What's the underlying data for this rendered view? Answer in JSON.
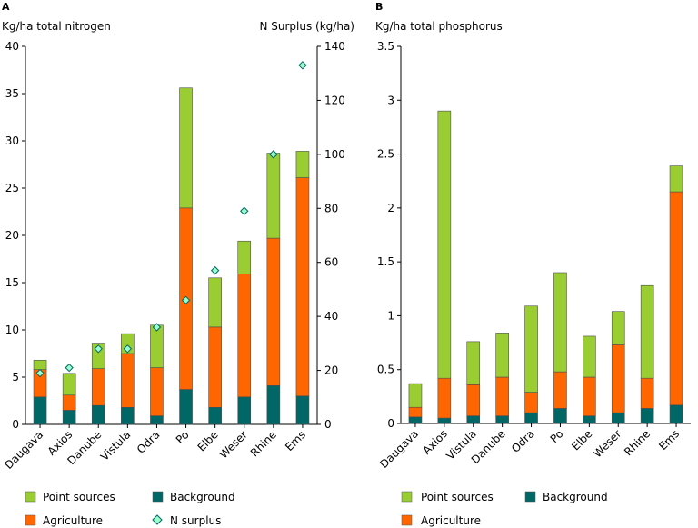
{
  "colors": {
    "point_sources": "#9ACD32",
    "agriculture": "#FF6600",
    "background": "#006666",
    "n_surplus_fill": "#99FFCC",
    "n_surplus_stroke": "#006666"
  },
  "legend": {
    "point_sources": "Point sources",
    "background": "Background",
    "agriculture": "Agriculture",
    "n_surplus": "N surplus"
  },
  "chart_data": [
    {
      "panel_letter": "A",
      "type": "bar",
      "stacked": true,
      "ylabel": "Kg/ha total nitrogen",
      "y2label": "N Surplus (kg/ha)",
      "ylim": [
        0,
        40
      ],
      "yticks": [
        "0",
        "5",
        "10",
        "15",
        "20",
        "25",
        "30",
        "35",
        "40"
      ],
      "y2lim": [
        0,
        140
      ],
      "y2ticks": [
        "0",
        "20",
        "40",
        "60",
        "80",
        "100",
        "120",
        "140"
      ],
      "categories": [
        "Daugava",
        "Axios",
        "Danube",
        "Vistula",
        "Odra",
        "Po",
        "Elbe",
        "Weser",
        "Rhine",
        "Ems"
      ],
      "series": [
        {
          "name": "Background",
          "values": [
            2.9,
            1.5,
            2.0,
            1.8,
            0.9,
            3.7,
            1.8,
            2.9,
            4.1,
            3.0
          ]
        },
        {
          "name": "Agriculture",
          "values": [
            2.9,
            1.6,
            3.9,
            5.7,
            5.1,
            19.2,
            8.5,
            13.0,
            15.6,
            23.1
          ]
        },
        {
          "name": "Point sources",
          "values": [
            1.0,
            2.3,
            2.7,
            2.1,
            4.5,
            12.7,
            5.2,
            3.5,
            9.0,
            2.8
          ]
        }
      ],
      "n_surplus": [
        19,
        21,
        28,
        28,
        36,
        46,
        57,
        79,
        100,
        133
      ],
      "grid": false,
      "legend_position": "bottom"
    },
    {
      "panel_letter": "B",
      "type": "bar",
      "stacked": true,
      "ylabel": "Kg/ha total phosphorus",
      "ylim": [
        0,
        3.5
      ],
      "yticks": [
        "0",
        "0.5",
        "1",
        "1.5",
        "2",
        "2.5",
        "3",
        "3.5"
      ],
      "categories": [
        "Daugava",
        "Axios",
        "Vistula",
        "Danube",
        "Odra",
        "Po",
        "Elbe",
        "Weser",
        "Rhine",
        "Ems"
      ],
      "series": [
        {
          "name": "Background",
          "values": [
            0.06,
            0.05,
            0.07,
            0.07,
            0.1,
            0.14,
            0.07,
            0.1,
            0.14,
            0.17
          ]
        },
        {
          "name": "Agriculture",
          "values": [
            0.09,
            0.37,
            0.29,
            0.36,
            0.19,
            0.34,
            0.36,
            0.63,
            0.28,
            1.98
          ]
        },
        {
          "name": "Point sources",
          "values": [
            0.22,
            2.48,
            0.4,
            0.41,
            0.8,
            0.92,
            0.38,
            0.31,
            0.86,
            0.24
          ]
        }
      ],
      "grid": false,
      "legend_position": "bottom"
    }
  ]
}
